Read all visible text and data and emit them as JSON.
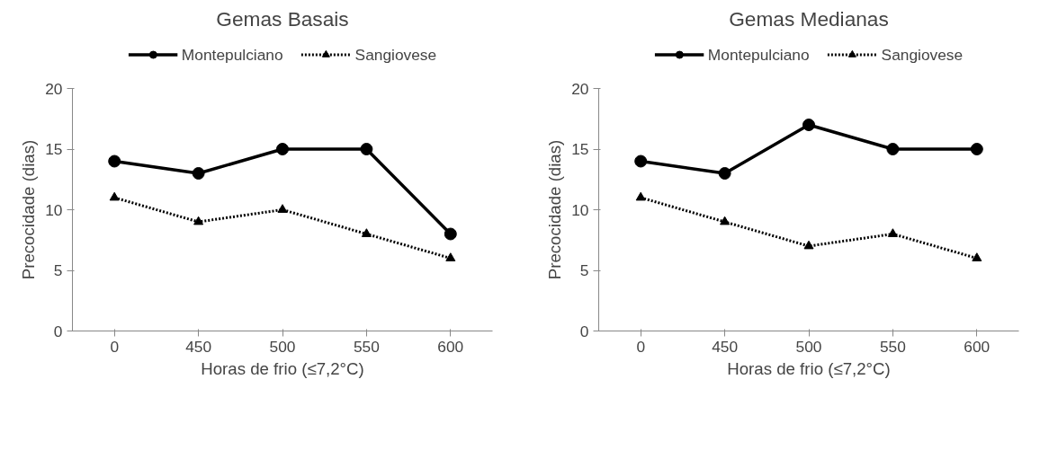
{
  "chart_data": [
    {
      "type": "line",
      "title": "Gemas Basais",
      "xlabel": "Horas de frio (≤7,2°C)",
      "ylabel": "Precocidade (dias)",
      "categories": [
        "0",
        "450",
        "500",
        "550",
        "600"
      ],
      "ylim": [
        0,
        20
      ],
      "yticks": [
        0,
        5,
        10,
        15,
        20
      ],
      "grid": false,
      "legend": "top",
      "series": [
        {
          "name": "Montepulciano",
          "color": "#000000",
          "values": [
            14,
            13,
            15,
            15,
            8
          ],
          "marker": "circle",
          "line_style": "solid"
        },
        {
          "name": "Sangiovese",
          "color": "#000000",
          "values": [
            11,
            9,
            10,
            8,
            6
          ],
          "marker": "triangle",
          "line_style": "dotted"
        }
      ]
    },
    {
      "type": "line",
      "title": "Gemas Medianas",
      "xlabel": "Horas de frio (≤7,2°C)",
      "ylabel": "Precocidade (dias)",
      "categories": [
        "0",
        "450",
        "500",
        "550",
        "600"
      ],
      "ylim": [
        0,
        20
      ],
      "yticks": [
        0,
        5,
        10,
        15,
        20
      ],
      "grid": false,
      "legend": "top",
      "series": [
        {
          "name": "Montepulciano",
          "color": "#000000",
          "values": [
            14,
            13,
            17,
            15,
            15
          ],
          "marker": "circle",
          "line_style": "solid"
        },
        {
          "name": "Sangiovese",
          "color": "#000000",
          "values": [
            11,
            9,
            7,
            8,
            6
          ],
          "marker": "triangle",
          "line_style": "dotted"
        }
      ]
    }
  ]
}
